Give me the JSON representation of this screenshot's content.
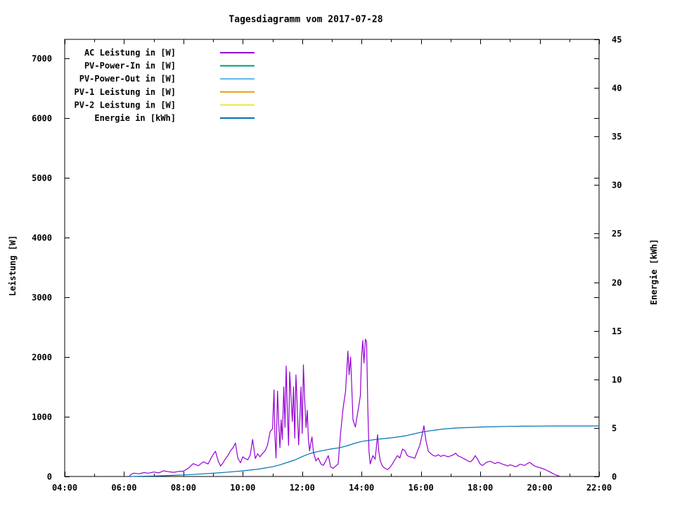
{
  "title": "Tagesdiagramm vom 2017-07-28",
  "axes": {
    "x": {
      "tick_labels": [
        "04:00",
        "06:00",
        "08:00",
        "10:00",
        "12:00",
        "14:00",
        "16:00",
        "18:00",
        "20:00",
        "22:00"
      ],
      "tick_values_hours": [
        4,
        6,
        8,
        10,
        12,
        14,
        16,
        18,
        20,
        22
      ],
      "minor_tick_every_hours": 1,
      "range_hours": [
        4,
        22
      ]
    },
    "y_left": {
      "label": "Leistung [W]",
      "tick_labels": [
        "0",
        "1000",
        "2000",
        "3000",
        "4000",
        "5000",
        "6000",
        "7000"
      ],
      "tick_values": [
        0,
        1000,
        2000,
        3000,
        4000,
        5000,
        6000,
        7000
      ],
      "range": [
        0,
        7320
      ]
    },
    "y_right": {
      "label": "Energie [kWh]",
      "tick_labels": [
        "0",
        "5",
        "10",
        "15",
        "20",
        "25",
        "30",
        "35",
        "40",
        "45"
      ],
      "tick_values": [
        0,
        5,
        10,
        15,
        20,
        25,
        30,
        35,
        40,
        45
      ],
      "range": [
        0,
        45
      ]
    }
  },
  "legend": {
    "position": "top-left-inside",
    "items": [
      {
        "label": "AC Leistung in [W]",
        "color": "#9400d3"
      },
      {
        "label": "PV-Power-In in [W]",
        "color": "#009e73"
      },
      {
        "label": "PV-Power-Out in [W]",
        "color": "#56b4e9"
      },
      {
        "label": "PV-1 Leistung in [W]",
        "color": "#e69f00"
      },
      {
        "label": "PV-2 Leistung in [W]",
        "color": "#f0e442"
      },
      {
        "label": "Energie in [kWh]",
        "color": "#0072b2"
      }
    ]
  },
  "chart_data": {
    "type": "line",
    "title": "Tagesdiagramm vom 2017-07-28",
    "xlabel": "",
    "ylabel": "Leistung [W]",
    "y2label": "Energie [kWh]",
    "x_unit": "time (decimal hours)",
    "xlim_hours": [
      4,
      22
    ],
    "ylim_left": [
      0,
      7320
    ],
    "ylim_right": [
      0,
      45
    ],
    "grid": false,
    "series": [
      {
        "name": "AC Leistung in [W]",
        "color": "#9400d3",
        "axis": "left",
        "unit": "W",
        "points": [
          [
            6.17,
            0
          ],
          [
            6.25,
            40
          ],
          [
            6.33,
            55
          ],
          [
            6.5,
            45
          ],
          [
            6.67,
            65
          ],
          [
            6.83,
            55
          ],
          [
            7.0,
            75
          ],
          [
            7.17,
            60
          ],
          [
            7.33,
            95
          ],
          [
            7.5,
            80
          ],
          [
            7.67,
            70
          ],
          [
            7.83,
            85
          ],
          [
            8.0,
            90
          ],
          [
            8.17,
            140
          ],
          [
            8.33,
            215
          ],
          [
            8.5,
            180
          ],
          [
            8.67,
            245
          ],
          [
            8.83,
            210
          ],
          [
            9.0,
            370
          ],
          [
            9.08,
            420
          ],
          [
            9.17,
            260
          ],
          [
            9.25,
            175
          ],
          [
            9.33,
            225
          ],
          [
            9.42,
            300
          ],
          [
            9.5,
            350
          ],
          [
            9.58,
            430
          ],
          [
            9.67,
            480
          ],
          [
            9.75,
            560
          ],
          [
            9.83,
            310
          ],
          [
            9.92,
            230
          ],
          [
            10.0,
            330
          ],
          [
            10.08,
            300
          ],
          [
            10.17,
            280
          ],
          [
            10.25,
            360
          ],
          [
            10.33,
            620
          ],
          [
            10.42,
            300
          ],
          [
            10.5,
            380
          ],
          [
            10.58,
            330
          ],
          [
            10.67,
            390
          ],
          [
            10.75,
            430
          ],
          [
            10.83,
            520
          ],
          [
            10.92,
            750
          ],
          [
            11.0,
            800
          ],
          [
            11.05,
            1450
          ],
          [
            11.08,
            700
          ],
          [
            11.12,
            310
          ],
          [
            11.17,
            1430
          ],
          [
            11.21,
            900
          ],
          [
            11.25,
            480
          ],
          [
            11.29,
            950
          ],
          [
            11.33,
            620
          ],
          [
            11.38,
            1500
          ],
          [
            11.42,
            820
          ],
          [
            11.46,
            1850
          ],
          [
            11.5,
            1100
          ],
          [
            11.54,
            520
          ],
          [
            11.58,
            1750
          ],
          [
            11.63,
            1260
          ],
          [
            11.67,
            920
          ],
          [
            11.71,
            1500
          ],
          [
            11.75,
            640
          ],
          [
            11.79,
            1700
          ],
          [
            11.83,
            1230
          ],
          [
            11.88,
            530
          ],
          [
            11.92,
            960
          ],
          [
            11.96,
            1500
          ],
          [
            12.0,
            720
          ],
          [
            12.04,
            1870
          ],
          [
            12.08,
            1320
          ],
          [
            12.13,
            820
          ],
          [
            12.17,
            1110
          ],
          [
            12.21,
            620
          ],
          [
            12.25,
            430
          ],
          [
            12.29,
            560
          ],
          [
            12.33,
            660
          ],
          [
            12.38,
            410
          ],
          [
            12.46,
            260
          ],
          [
            12.54,
            310
          ],
          [
            12.63,
            210
          ],
          [
            12.71,
            185
          ],
          [
            12.79,
            255
          ],
          [
            12.88,
            350
          ],
          [
            12.96,
            160
          ],
          [
            13.04,
            135
          ],
          [
            13.13,
            175
          ],
          [
            13.21,
            210
          ],
          [
            13.29,
            700
          ],
          [
            13.38,
            1150
          ],
          [
            13.46,
            1420
          ],
          [
            13.54,
            2100
          ],
          [
            13.58,
            1700
          ],
          [
            13.63,
            2000
          ],
          [
            13.67,
            1500
          ],
          [
            13.71,
            950
          ],
          [
            13.79,
            830
          ],
          [
            13.88,
            1100
          ],
          [
            13.96,
            1350
          ],
          [
            14.0,
            2000
          ],
          [
            14.04,
            2280
          ],
          [
            14.08,
            1900
          ],
          [
            14.13,
            2300
          ],
          [
            14.17,
            2250
          ],
          [
            14.21,
            1150
          ],
          [
            14.25,
            420
          ],
          [
            14.29,
            210
          ],
          [
            14.38,
            350
          ],
          [
            14.46,
            290
          ],
          [
            14.54,
            700
          ],
          [
            14.58,
            420
          ],
          [
            14.63,
            260
          ],
          [
            14.71,
            170
          ],
          [
            14.79,
            135
          ],
          [
            14.88,
            115
          ],
          [
            14.96,
            155
          ],
          [
            15.04,
            210
          ],
          [
            15.13,
            290
          ],
          [
            15.21,
            350
          ],
          [
            15.29,
            310
          ],
          [
            15.38,
            460
          ],
          [
            15.46,
            430
          ],
          [
            15.54,
            350
          ],
          [
            15.63,
            330
          ],
          [
            15.71,
            320
          ],
          [
            15.79,
            305
          ],
          [
            15.88,
            420
          ],
          [
            15.96,
            520
          ],
          [
            16.04,
            700
          ],
          [
            16.1,
            850
          ],
          [
            16.17,
            600
          ],
          [
            16.25,
            420
          ],
          [
            16.33,
            385
          ],
          [
            16.42,
            350
          ],
          [
            16.5,
            340
          ],
          [
            16.58,
            365
          ],
          [
            16.67,
            335
          ],
          [
            16.75,
            355
          ],
          [
            16.83,
            345
          ],
          [
            16.92,
            330
          ],
          [
            17.0,
            345
          ],
          [
            17.08,
            360
          ],
          [
            17.17,
            390
          ],
          [
            17.25,
            345
          ],
          [
            17.33,
            330
          ],
          [
            17.42,
            305
          ],
          [
            17.5,
            285
          ],
          [
            17.58,
            260
          ],
          [
            17.67,
            245
          ],
          [
            17.75,
            285
          ],
          [
            17.83,
            350
          ],
          [
            17.92,
            280
          ],
          [
            18.0,
            205
          ],
          [
            18.08,
            185
          ],
          [
            18.17,
            225
          ],
          [
            18.25,
            245
          ],
          [
            18.33,
            255
          ],
          [
            18.42,
            235
          ],
          [
            18.5,
            215
          ],
          [
            18.58,
            235
          ],
          [
            18.67,
            225
          ],
          [
            18.75,
            205
          ],
          [
            18.83,
            195
          ],
          [
            18.92,
            175
          ],
          [
            19.0,
            195
          ],
          [
            19.08,
            185
          ],
          [
            19.17,
            165
          ],
          [
            19.25,
            175
          ],
          [
            19.33,
            205
          ],
          [
            19.42,
            195
          ],
          [
            19.5,
            185
          ],
          [
            19.58,
            215
          ],
          [
            19.67,
            235
          ],
          [
            19.75,
            205
          ],
          [
            19.83,
            175
          ],
          [
            19.92,
            160
          ],
          [
            20.0,
            150
          ],
          [
            20.08,
            135
          ],
          [
            20.17,
            120
          ],
          [
            20.25,
            100
          ],
          [
            20.33,
            80
          ],
          [
            20.42,
            55
          ],
          [
            20.5,
            35
          ],
          [
            20.58,
            20
          ],
          [
            20.67,
            5
          ]
        ]
      },
      {
        "name": "PV-Power-In in [W]",
        "color": "#009e73",
        "axis": "left",
        "unit": "W",
        "points": []
      },
      {
        "name": "PV-Power-Out in [W]",
        "color": "#56b4e9",
        "axis": "left",
        "unit": "W",
        "points": []
      },
      {
        "name": "PV-1 Leistung in [W]",
        "color": "#e69f00",
        "axis": "left",
        "unit": "W",
        "points": []
      },
      {
        "name": "PV-2 Leistung in [W]",
        "color": "#f0e442",
        "axis": "left",
        "unit": "W",
        "points": []
      },
      {
        "name": "Energie in [kWh]",
        "color": "#0072b2",
        "axis": "right",
        "unit": "kWh",
        "points": [
          [
            6.2,
            0
          ],
          [
            6.5,
            0.02
          ],
          [
            7.0,
            0.05
          ],
          [
            7.5,
            0.1
          ],
          [
            8.0,
            0.16
          ],
          [
            8.5,
            0.24
          ],
          [
            9.0,
            0.33
          ],
          [
            9.5,
            0.45
          ],
          [
            10.0,
            0.58
          ],
          [
            10.5,
            0.75
          ],
          [
            11.0,
            1.0
          ],
          [
            11.25,
            1.2
          ],
          [
            11.5,
            1.45
          ],
          [
            11.75,
            1.7
          ],
          [
            12.0,
            2.05
          ],
          [
            12.25,
            2.35
          ],
          [
            12.5,
            2.55
          ],
          [
            12.75,
            2.7
          ],
          [
            13.0,
            2.85
          ],
          [
            13.25,
            2.95
          ],
          [
            13.5,
            3.15
          ],
          [
            13.75,
            3.4
          ],
          [
            14.0,
            3.6
          ],
          [
            14.25,
            3.72
          ],
          [
            14.5,
            3.82
          ],
          [
            14.75,
            3.9
          ],
          [
            15.0,
            3.98
          ],
          [
            15.25,
            4.08
          ],
          [
            15.5,
            4.2
          ],
          [
            15.75,
            4.38
          ],
          [
            16.0,
            4.55
          ],
          [
            16.25,
            4.68
          ],
          [
            16.5,
            4.78
          ],
          [
            16.75,
            4.88
          ],
          [
            17.0,
            4.95
          ],
          [
            17.25,
            5.0
          ],
          [
            17.5,
            5.03
          ],
          [
            17.75,
            5.06
          ],
          [
            18.0,
            5.09
          ],
          [
            18.25,
            5.11
          ],
          [
            18.5,
            5.13
          ],
          [
            19.0,
            5.16
          ],
          [
            19.5,
            5.18
          ],
          [
            20.0,
            5.19
          ],
          [
            20.5,
            5.2
          ],
          [
            21.0,
            5.2
          ],
          [
            21.5,
            5.2
          ],
          [
            22.0,
            5.2
          ]
        ]
      }
    ]
  }
}
